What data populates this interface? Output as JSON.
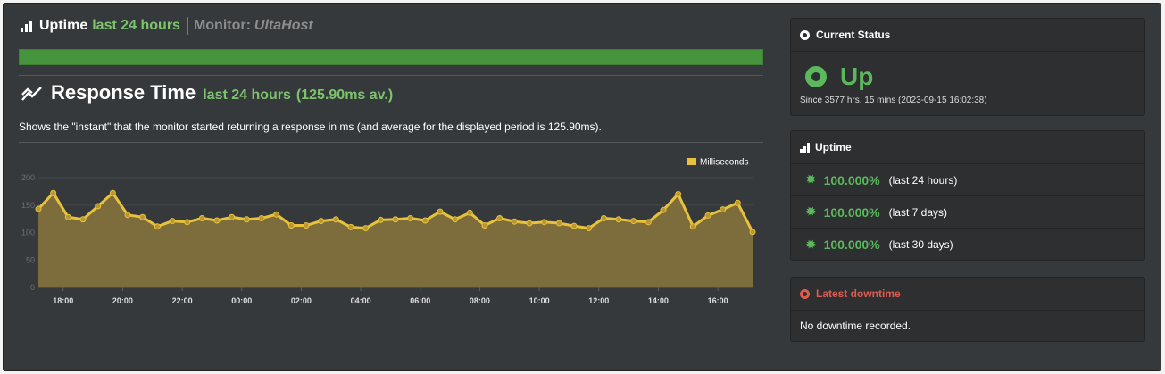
{
  "uptime_header": {
    "title": "Uptime",
    "period": "last 24 hours",
    "monitor_label": "Monitor:",
    "monitor_name": "UltaHost",
    "bar_fraction": 1.0
  },
  "response_time": {
    "title": "Response Time",
    "period": "last 24 hours",
    "average": "(125.90ms av.)",
    "description": "Shows the \"instant\" that the monitor started returning a response in ms (and average for the displayed period is 125.90ms)."
  },
  "chart_data": {
    "type": "area",
    "legend": "Milliseconds",
    "legend_position": "top-right",
    "ylim": [
      0,
      200
    ],
    "y_ticks": [
      "0",
      "50",
      "100",
      "150",
      "200"
    ],
    "x_ticks": [
      "18:00",
      "20:00",
      "22:00",
      "00:00",
      "02:00",
      "04:00",
      "06:00",
      "08:00",
      "10:00",
      "12:00",
      "14:00",
      "16:00"
    ],
    "x_start": "17:10",
    "x_end": "17:10 (+1 day)",
    "series": [
      {
        "name": "Milliseconds",
        "values": [
          143,
          172,
          128,
          124,
          148,
          172,
          132,
          128,
          111,
          121,
          119,
          126,
          122,
          128,
          124,
          126,
          133,
          113,
          113,
          121,
          124,
          110,
          108,
          123,
          124,
          126,
          122,
          138,
          124,
          136,
          113,
          126,
          120,
          117,
          119,
          117,
          112,
          108,
          126,
          124,
          121,
          119,
          141,
          170,
          111,
          131,
          142,
          154,
          101
        ]
      }
    ],
    "color": "#e8c23b",
    "fill": "#7d6d3c",
    "grid": true
  },
  "current_status": {
    "title": "Current Status",
    "status": "Up",
    "since": "Since 3577 hrs, 15 mins (2023-09-15 16:02:38)",
    "color": "#5cb85c"
  },
  "uptime_panel": {
    "title": "Uptime",
    "rows": [
      {
        "percent": "100.000%",
        "range": "(last 24 hours)"
      },
      {
        "percent": "100.000%",
        "range": "(last 7 days)"
      },
      {
        "percent": "100.000%",
        "range": "(last 30 days)"
      }
    ]
  },
  "latest_downtime": {
    "title": "Latest downtime",
    "message": "No downtime recorded."
  }
}
